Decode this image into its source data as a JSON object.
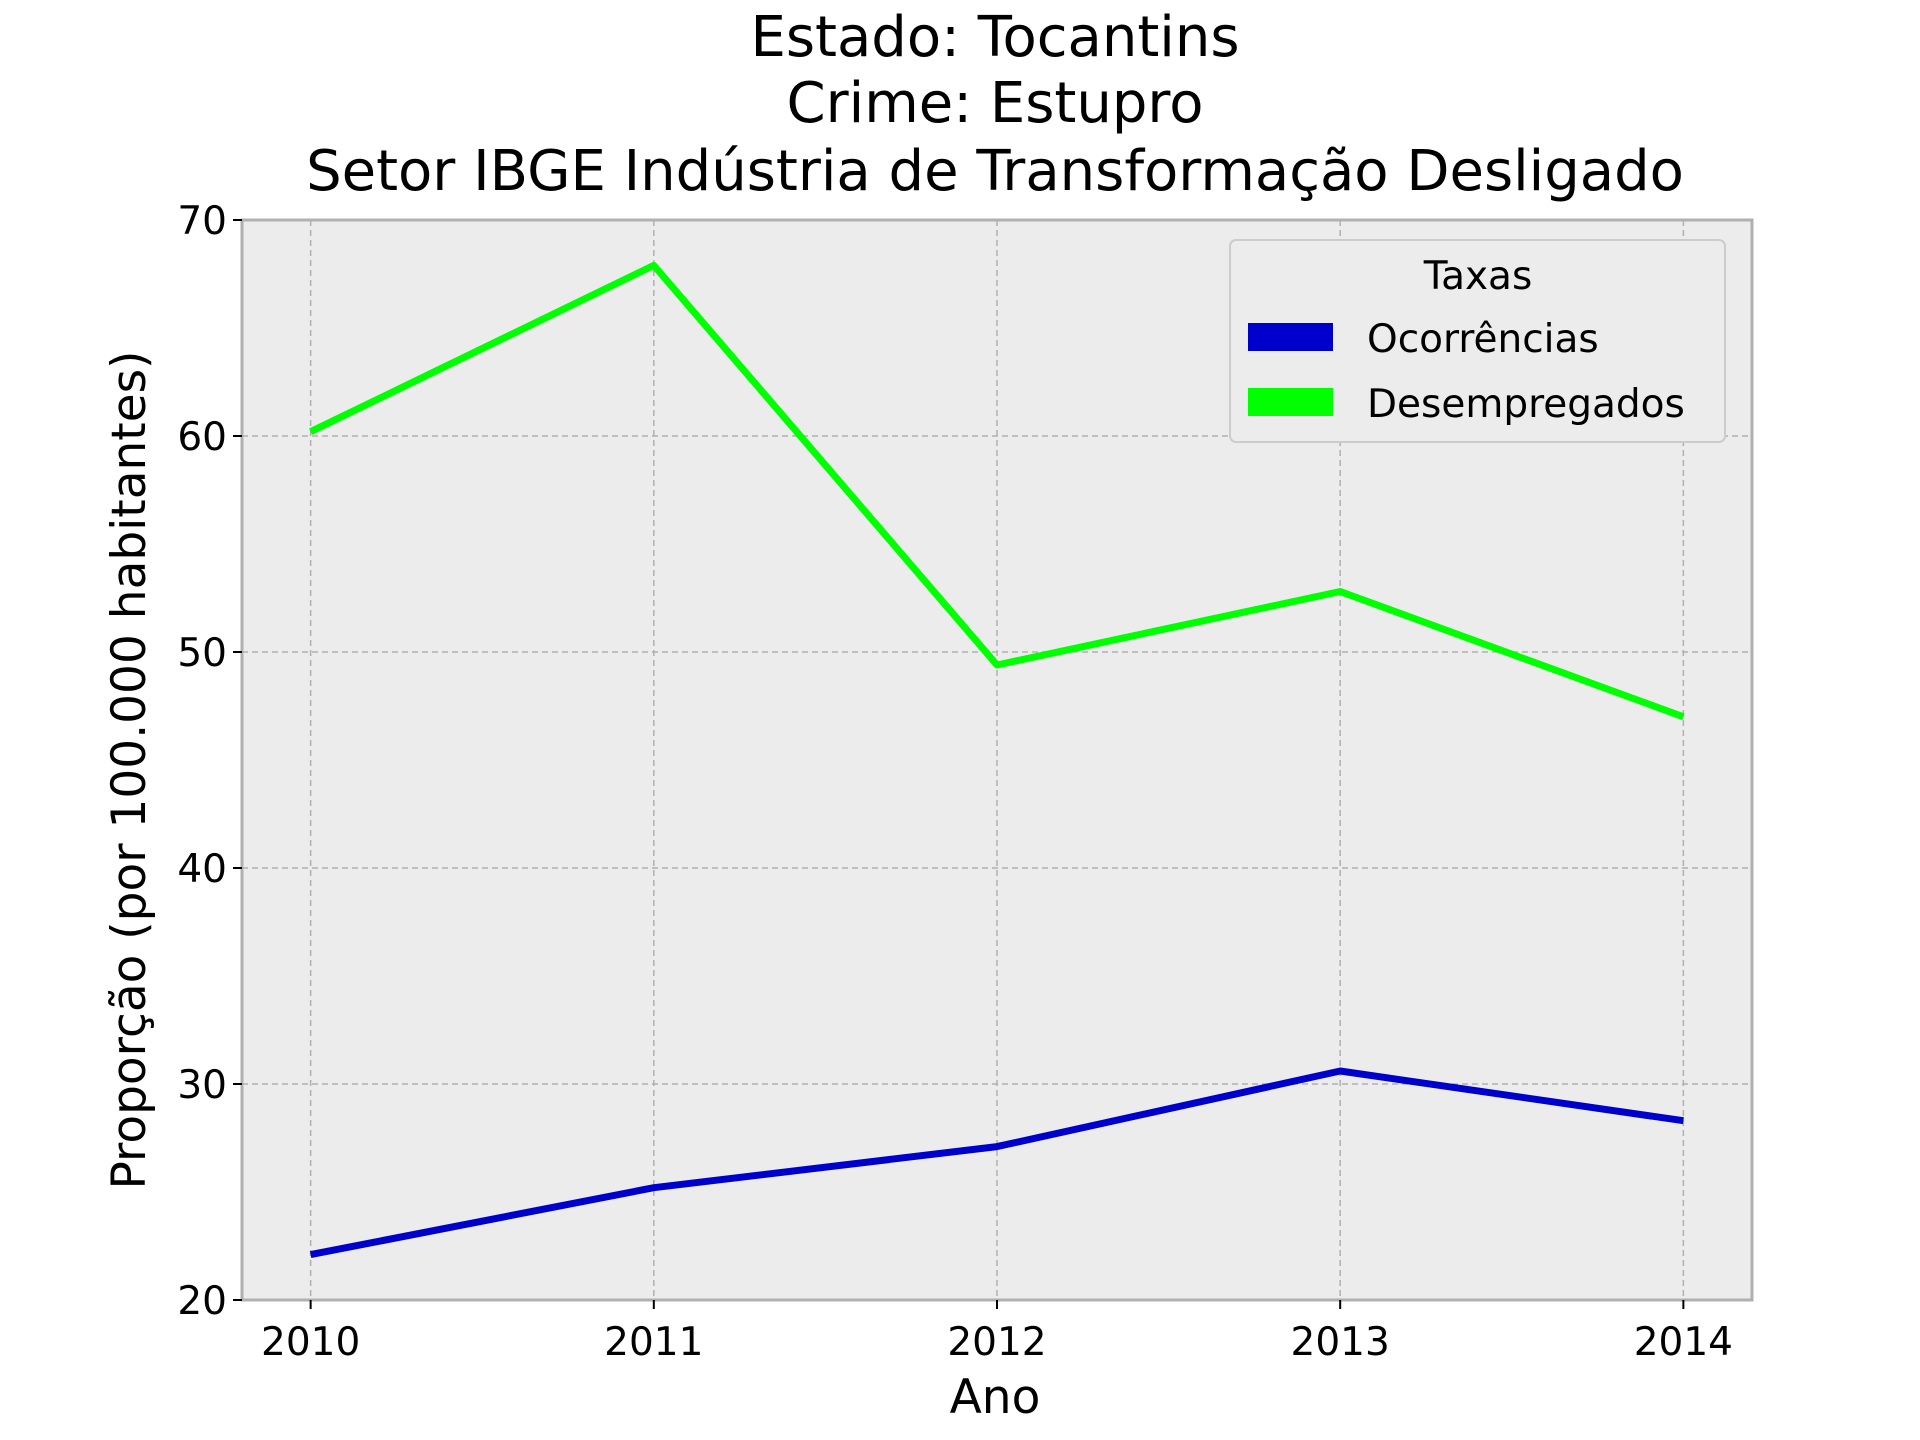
{
  "chart_data": {
    "type": "line",
    "title_lines": [
      "Estado: Tocantins",
      "Crime: Estupro",
      "Setor IBGE  Indústria de Transformação   Desligado"
    ],
    "xlabel": "Ano",
    "ylabel": "Proporção (por 100.000 habitantes)",
    "x": [
      2010,
      2011,
      2012,
      2013,
      2014
    ],
    "x_tick_labels": [
      "2010",
      "2011",
      "2012",
      "2013",
      "2014"
    ],
    "xlim": [
      2009.8,
      2014.2
    ],
    "ylim": [
      20,
      70
    ],
    "y_ticks": [
      20,
      30,
      40,
      50,
      60,
      70
    ],
    "y_tick_labels": [
      "20",
      "30",
      "40",
      "50",
      "60",
      "70"
    ],
    "grid": true,
    "legend": {
      "title": "Taxas",
      "placement": "upper right"
    },
    "series": [
      {
        "name": "Ocorrências",
        "color": "#0000cc",
        "values": [
          22.1,
          25.2,
          27.1,
          30.6,
          28.3
        ]
      },
      {
        "name": "Desempregados",
        "color": "#00ff00",
        "values": [
          60.2,
          67.9,
          49.4,
          52.8,
          47.0
        ]
      }
    ]
  },
  "colors": {
    "plot_background": "#ececec",
    "grid": "#b0b0b0",
    "spine": "#b0b0b0"
  }
}
